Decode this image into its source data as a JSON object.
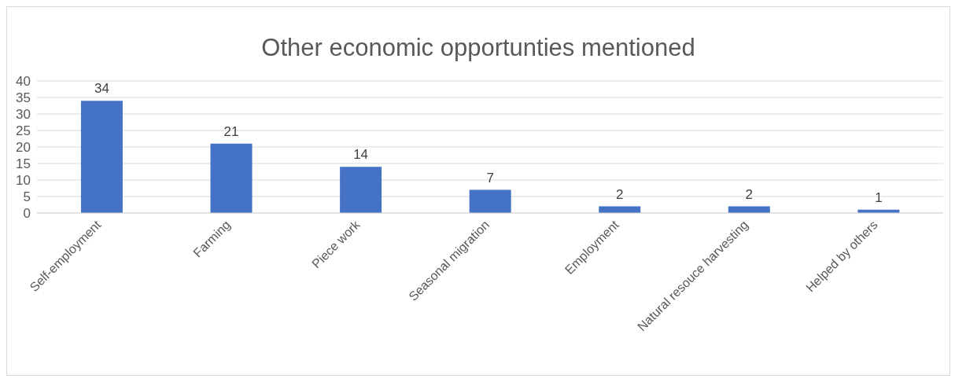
{
  "chart_data": {
    "type": "bar",
    "title": "Other economic opportunties mentioned",
    "categories": [
      "Self-employment",
      "Farming",
      "Piece work",
      "Seasonal migration",
      "Employment",
      "Natural resouce harvesting",
      "Helped by others"
    ],
    "values": [
      34,
      21,
      14,
      7,
      2,
      2,
      1
    ],
    "color": "#4472c4",
    "ylim": [
      0,
      40
    ],
    "yticks": [
      0,
      5,
      10,
      15,
      20,
      25,
      30,
      35,
      40
    ],
    "grid": "y",
    "data_labels": true,
    "legend": false
  }
}
